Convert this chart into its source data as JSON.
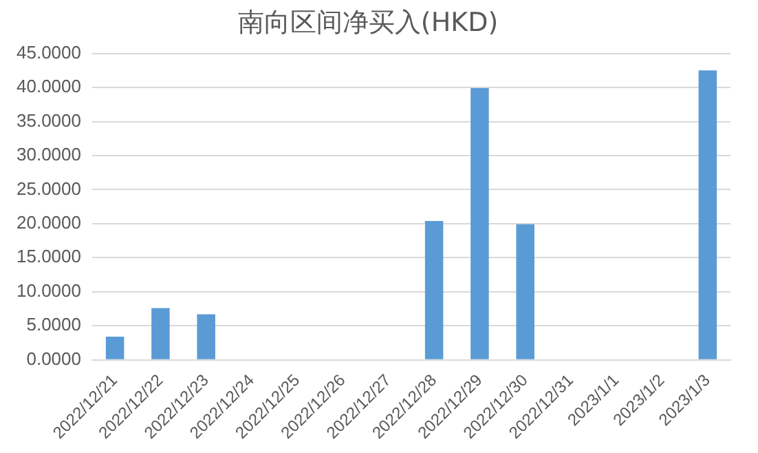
{
  "chart_data": {
    "type": "bar",
    "title": "南向区间净买入(HKD)",
    "categories": [
      "2022/12/21",
      "2022/12/22",
      "2022/12/23",
      "2022/12/24",
      "2022/12/25",
      "2022/12/26",
      "2022/12/27",
      "2022/12/28",
      "2022/12/29",
      "2022/12/30",
      "2022/12/31",
      "2023/1/1",
      "2023/1/2",
      "2023/1/3"
    ],
    "values": [
      3.4,
      7.6,
      6.7,
      0,
      0,
      0,
      0,
      20.4,
      39.9,
      19.9,
      0,
      0,
      0,
      42.5
    ],
    "color": "#5b9bd5",
    "ylim": [
      0,
      45
    ],
    "yticks": [
      {
        "value": 0,
        "label": "0.0000"
      },
      {
        "value": 5,
        "label": "5.0000"
      },
      {
        "value": 10,
        "label": "10.0000"
      },
      {
        "value": 15,
        "label": "15.0000"
      },
      {
        "value": 20,
        "label": "20.0000"
      },
      {
        "value": 25,
        "label": "25.0000"
      },
      {
        "value": 30,
        "label": "30.0000"
      },
      {
        "value": 35,
        "label": "35.0000"
      },
      {
        "value": 40,
        "label": "40.0000"
      },
      {
        "value": 45,
        "label": "45.0000"
      }
    ],
    "grid": "y",
    "legend": false
  }
}
